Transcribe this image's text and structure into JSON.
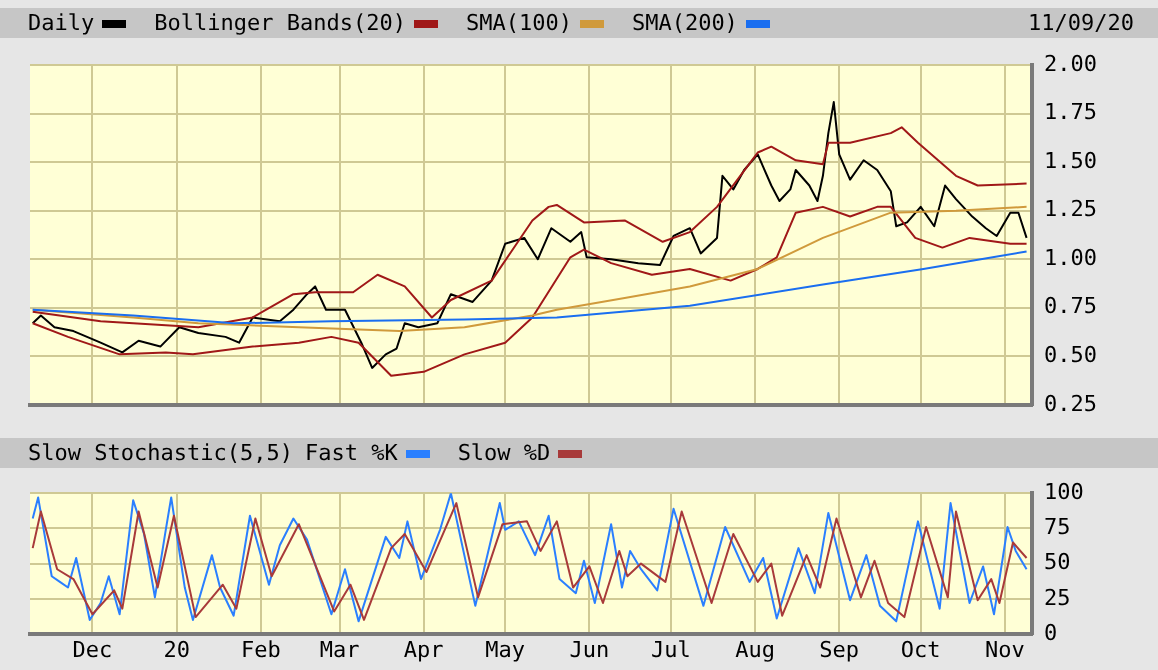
{
  "chart_data": [
    {
      "type": "line",
      "legend": "top",
      "grid": true,
      "marker": "none",
      "tick_labels": "y",
      "annotations": [
        "11/09/20"
      ],
      "xlim": [
        "2019-11-08",
        "2020-11-11"
      ],
      "xticks": [
        {
          "value": "2019-12-01",
          "label": null
        },
        {
          "value": "2020-01-01",
          "label": null
        },
        {
          "value": "2020-02-01",
          "label": null
        },
        {
          "value": "2020-03-01",
          "label": null
        },
        {
          "value": "2020-04-01",
          "label": null
        },
        {
          "value": "2020-05-01",
          "label": null
        },
        {
          "value": "2020-06-01",
          "label": null
        },
        {
          "value": "2020-07-01",
          "label": null
        },
        {
          "value": "2020-08-01",
          "label": null
        },
        {
          "value": "2020-09-01",
          "label": null
        },
        {
          "value": "2020-10-01",
          "label": null
        },
        {
          "value": "2020-11-01",
          "label": null
        }
      ],
      "ylim": [
        0.25,
        2.0
      ],
      "yticks": [
        {
          "value": 0.25,
          "label": "0.25"
        },
        {
          "value": 0.5,
          "label": "0.50"
        },
        {
          "value": 0.75,
          "label": "0.75"
        },
        {
          "value": 1.0,
          "label": "1.00"
        },
        {
          "value": 1.25,
          "label": "1.25"
        },
        {
          "value": 1.5,
          "label": "1.50"
        },
        {
          "value": 1.75,
          "label": "1.75"
        },
        {
          "value": 2.0,
          "label": "2.00"
        }
      ],
      "series": [
        {
          "name": "Daily",
          "color": "#000000",
          "x": [
            "2019-11-09",
            "2019-11-12",
            "2019-11-17",
            "2019-11-24",
            "2019-12-04",
            "2019-12-12",
            "2019-12-18",
            "2019-12-26",
            "2020-01-02",
            "2020-01-09",
            "2020-01-19",
            "2020-01-24",
            "2020-01-29",
            "2020-02-08",
            "2020-02-13",
            "2020-02-18",
            "2020-02-21",
            "2020-02-25",
            "2020-03-03",
            "2020-03-09",
            "2020-03-13",
            "2020-03-18",
            "2020-03-22",
            "2020-03-25",
            "2020-03-30",
            "2020-04-06",
            "2020-04-11",
            "2020-04-19",
            "2020-04-26",
            "2020-05-01",
            "2020-05-08",
            "2020-05-13",
            "2020-05-18",
            "2020-05-25",
            "2020-05-29",
            "2020-05-31",
            "2020-06-09",
            "2020-06-19",
            "2020-06-27",
            "2020-07-02",
            "2020-07-08",
            "2020-07-12",
            "2020-07-18",
            "2020-07-20",
            "2020-07-24",
            "2020-07-28",
            "2020-08-02",
            "2020-08-07",
            "2020-08-10",
            "2020-08-14",
            "2020-08-16",
            "2020-08-21",
            "2020-08-24",
            "2020-08-26",
            "2020-08-28",
            "2020-08-30",
            "2020-09-01",
            "2020-09-05",
            "2020-09-10",
            "2020-09-15",
            "2020-09-20",
            "2020-09-22",
            "2020-09-26",
            "2020-10-01",
            "2020-10-06",
            "2020-10-10",
            "2020-10-14",
            "2020-10-20",
            "2020-10-25",
            "2020-10-29",
            "2020-11-03",
            "2020-11-06",
            "2020-11-09"
          ],
          "values": [
            0.67,
            0.71,
            0.65,
            0.63,
            0.57,
            0.52,
            0.58,
            0.55,
            0.65,
            0.62,
            0.6,
            0.57,
            0.7,
            0.68,
            0.74,
            0.82,
            0.86,
            0.74,
            0.74,
            0.57,
            0.44,
            0.51,
            0.54,
            0.67,
            0.65,
            0.67,
            0.82,
            0.78,
            0.89,
            1.08,
            1.11,
            1.0,
            1.16,
            1.09,
            1.14,
            1.01,
            1.0,
            0.98,
            0.97,
            1.12,
            1.16,
            1.03,
            1.11,
            1.43,
            1.36,
            1.46,
            1.54,
            1.38,
            1.3,
            1.36,
            1.46,
            1.38,
            1.3,
            1.43,
            1.65,
            1.81,
            1.54,
            1.41,
            1.51,
            1.46,
            1.35,
            1.17,
            1.19,
            1.27,
            1.17,
            1.38,
            1.31,
            1.22,
            1.16,
            1.12,
            1.24,
            1.24,
            1.11
          ]
        },
        {
          "name": "Bollinger Bands(20)",
          "color": "#a01818",
          "x": [
            "2019-11-09",
            "2019-12-04",
            "2019-12-28",
            "2020-01-09",
            "2020-01-29",
            "2020-02-13",
            "2020-02-21",
            "2020-03-06",
            "2020-03-15",
            "2020-03-25",
            "2020-04-04",
            "2020-04-11",
            "2020-04-26",
            "2020-05-11",
            "2020-05-17",
            "2020-05-20",
            "2020-05-30",
            "2020-06-14",
            "2020-06-28",
            "2020-07-08",
            "2020-07-18",
            "2020-08-02",
            "2020-08-07",
            "2020-08-16",
            "2020-08-26",
            "2020-08-28",
            "2020-09-05",
            "2020-09-20",
            "2020-09-24",
            "2020-09-30",
            "2020-10-14",
            "2020-10-22",
            "2020-11-09"
          ],
          "values": [
            0.73,
            0.68,
            0.66,
            0.65,
            0.7,
            0.82,
            0.83,
            0.83,
            0.92,
            0.86,
            0.7,
            0.79,
            0.89,
            1.2,
            1.27,
            1.28,
            1.19,
            1.2,
            1.09,
            1.14,
            1.27,
            1.55,
            1.58,
            1.51,
            1.49,
            1.6,
            1.6,
            1.65,
            1.68,
            1.6,
            1.43,
            1.38,
            1.39
          ]
        },
        {
          "color": "#a01818",
          "x": [
            "2019-11-09",
            "2019-11-22",
            "2019-12-11",
            "2019-12-28",
            "2020-01-07",
            "2020-01-29",
            "2020-02-15",
            "2020-02-27",
            "2020-03-08",
            "2020-03-20",
            "2020-04-01",
            "2020-04-16",
            "2020-05-01",
            "2020-05-11",
            "2020-05-20",
            "2020-05-25",
            "2020-05-30",
            "2020-06-09",
            "2020-06-24",
            "2020-07-08",
            "2020-07-23",
            "2020-08-02",
            "2020-08-09",
            "2020-08-16",
            "2020-08-26",
            "2020-09-05",
            "2020-09-15",
            "2020-09-20",
            "2020-09-29",
            "2020-10-09",
            "2020-10-19",
            "2020-11-03",
            "2020-11-09"
          ],
          "values": [
            0.67,
            0.6,
            0.51,
            0.52,
            0.51,
            0.55,
            0.57,
            0.6,
            0.57,
            0.4,
            0.42,
            0.51,
            0.57,
            0.7,
            0.9,
            1.01,
            1.05,
            0.98,
            0.92,
            0.95,
            0.89,
            0.95,
            1.01,
            1.24,
            1.27,
            1.22,
            1.27,
            1.27,
            1.11,
            1.06,
            1.11,
            1.08,
            1.08
          ]
        },
        {
          "name": "SMA(100)",
          "color": "#d09a3c",
          "x": [
            "2019-11-09",
            "2019-12-16",
            "2020-01-09",
            "2020-02-15",
            "2020-03-23",
            "2020-04-16",
            "2020-05-11",
            "2020-05-20",
            "2020-06-14",
            "2020-07-08",
            "2020-08-02",
            "2020-08-26",
            "2020-09-20",
            "2020-10-14",
            "2020-11-09"
          ],
          "values": [
            0.74,
            0.7,
            0.67,
            0.65,
            0.63,
            0.65,
            0.71,
            0.74,
            0.8,
            0.86,
            0.95,
            1.11,
            1.24,
            1.25,
            1.27
          ]
        },
        {
          "name": "SMA(200)",
          "color": "#1a6ef0",
          "x": [
            "2019-11-09",
            "2019-12-16",
            "2020-01-22",
            "2020-02-27",
            "2020-04-16",
            "2020-05-20",
            "2020-07-08",
            "2020-08-26",
            "2020-10-02",
            "2020-11-09"
          ],
          "values": [
            0.74,
            0.71,
            0.67,
            0.68,
            0.69,
            0.7,
            0.76,
            0.87,
            0.95,
            1.04
          ]
        }
      ]
    },
    {
      "type": "line",
      "title": "Slow Stochastic(5,5)",
      "legend": "top",
      "grid": true,
      "marker": "none",
      "xlim": [
        "2019-11-08",
        "2020-11-11"
      ],
      "xticks": [
        {
          "value": "2019-12-01",
          "label": "Dec"
        },
        {
          "value": "2020-01-01",
          "label": "20"
        },
        {
          "value": "2020-02-01",
          "label": "Feb"
        },
        {
          "value": "2020-03-01",
          "label": "Mar"
        },
        {
          "value": "2020-04-01",
          "label": "Apr"
        },
        {
          "value": "2020-05-01",
          "label": "May"
        },
        {
          "value": "2020-06-01",
          "label": "Jun"
        },
        {
          "value": "2020-07-01",
          "label": "Jul"
        },
        {
          "value": "2020-08-01",
          "label": "Aug"
        },
        {
          "value": "2020-09-01",
          "label": "Sep"
        },
        {
          "value": "2020-10-01",
          "label": "Oct"
        },
        {
          "value": "2020-11-01",
          "label": "Nov"
        }
      ],
      "ylim": [
        0,
        100
      ],
      "yticks": [
        0,
        25,
        50,
        75,
        100
      ],
      "series": [
        {
          "name": "Fast %K",
          "color": "#2a7fff",
          "x": [
            "2019-11-09",
            "2019-11-11",
            "2019-11-16",
            "2019-11-19",
            "2019-11-22",
            "2019-11-25",
            "2019-11-30",
            "2019-12-04",
            "2019-12-07",
            "2019-12-11",
            "2019-12-16",
            "2019-12-20",
            "2019-12-24",
            "2019-12-28",
            "2019-12-30",
            "2020-01-04",
            "2020-01-07",
            "2020-01-14",
            "2020-01-17",
            "2020-01-22",
            "2020-01-28",
            "2020-02-04",
            "2020-02-08",
            "2020-02-13",
            "2020-02-18",
            "2020-02-27",
            "2020-03-03",
            "2020-03-08",
            "2020-03-18",
            "2020-03-23",
            "2020-03-26",
            "2020-03-31",
            "2020-04-07",
            "2020-04-11",
            "2020-04-20",
            "2020-04-29",
            "2020-05-01",
            "2020-05-06",
            "2020-05-12",
            "2020-05-17",
            "2020-05-21",
            "2020-05-27",
            "2020-05-30",
            "2020-06-03",
            "2020-06-09",
            "2020-06-13",
            "2020-06-16",
            "2020-06-20",
            "2020-06-26",
            "2020-07-02",
            "2020-07-13",
            "2020-07-21",
            "2020-07-30",
            "2020-08-04",
            "2020-08-09",
            "2020-08-17",
            "2020-08-23",
            "2020-08-28",
            "2020-09-05",
            "2020-09-11",
            "2020-09-16",
            "2020-09-22",
            "2020-09-30",
            "2020-10-08",
            "2020-10-12",
            "2020-10-19",
            "2020-10-24",
            "2020-10-28",
            "2020-11-02",
            "2020-11-05",
            "2020-11-09"
          ],
          "values": [
            82,
            97,
            41,
            37,
            33,
            54,
            10,
            22,
            41,
            14,
            95,
            71,
            26,
            74,
            97,
            33,
            10,
            56,
            33,
            13,
            84,
            35,
            63,
            82,
            67,
            14,
            46,
            9,
            69,
            54,
            80,
            39,
            74,
            100,
            20,
            93,
            74,
            80,
            56,
            84,
            39,
            29,
            52,
            22,
            78,
            33,
            59,
            46,
            31,
            89,
            20,
            76,
            37,
            54,
            11,
            61,
            29,
            86,
            24,
            56,
            20,
            9,
            80,
            18,
            93,
            22,
            48,
            14,
            76,
            59,
            46
          ]
        },
        {
          "name": "Slow %D",
          "color": "#a83a3a",
          "x": [
            "2019-11-09",
            "2019-11-12",
            "2019-11-18",
            "2019-11-24",
            "2019-12-01",
            "2019-12-09",
            "2019-12-12",
            "2019-12-18",
            "2019-12-25",
            "2019-12-31",
            "2020-01-08",
            "2020-01-18",
            "2020-01-23",
            "2020-01-30",
            "2020-02-05",
            "2020-02-15",
            "2020-02-28",
            "2020-03-05",
            "2020-03-10",
            "2020-03-20",
            "2020-03-25",
            "2020-04-02",
            "2020-04-13",
            "2020-04-21",
            "2020-04-30",
            "2020-05-09",
            "2020-05-14",
            "2020-05-20",
            "2020-05-26",
            "2020-06-01",
            "2020-06-06",
            "2020-06-12",
            "2020-06-15",
            "2020-06-20",
            "2020-06-29",
            "2020-07-05",
            "2020-07-16",
            "2020-07-24",
            "2020-08-02",
            "2020-08-07",
            "2020-08-11",
            "2020-08-20",
            "2020-08-25",
            "2020-08-31",
            "2020-09-09",
            "2020-09-14",
            "2020-09-19",
            "2020-09-25",
            "2020-10-03",
            "2020-10-11",
            "2020-10-14",
            "2020-10-22",
            "2020-10-27",
            "2020-10-30",
            "2020-11-04",
            "2020-11-09"
          ],
          "values": [
            61,
            87,
            46,
            39,
            14,
            31,
            18,
            87,
            33,
            84,
            12,
            35,
            18,
            82,
            41,
            78,
            16,
            35,
            10,
            61,
            71,
            44,
            93,
            26,
            78,
            80,
            59,
            80,
            33,
            48,
            22,
            59,
            41,
            50,
            37,
            87,
            22,
            71,
            37,
            50,
            13,
            56,
            33,
            82,
            26,
            52,
            22,
            12,
            76,
            26,
            87,
            24,
            39,
            22,
            65,
            54
          ]
        }
      ]
    }
  ]
}
